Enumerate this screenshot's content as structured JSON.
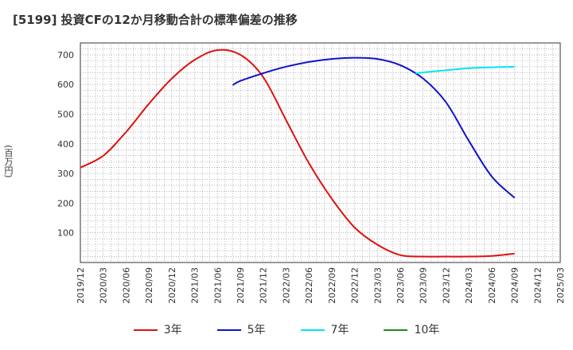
{
  "title": "[5199]  投資CFの12か月移動合計の標準偏差の推移",
  "chart_data": {
    "type": "line",
    "title": "[5199]  投資CFの12か月移動合計の標準偏差の推移",
    "xlabel": "",
    "ylabel": "(百万円)",
    "ylim": [
      0,
      740
    ],
    "yticks": [
      100,
      200,
      300,
      400,
      500,
      600,
      700
    ],
    "xticks": [
      "2019/12",
      "2020/03",
      "2020/06",
      "2020/09",
      "2020/12",
      "2021/03",
      "2021/06",
      "2021/09",
      "2021/12",
      "2022/03",
      "2022/06",
      "2022/09",
      "2022/12",
      "2023/03",
      "2023/06",
      "2023/09",
      "2023/12",
      "2024/03",
      "2024/06",
      "2024/09",
      "2024/12",
      "2025/03"
    ],
    "grid": true,
    "legend_position": "bottom",
    "series": [
      {
        "name": "3年",
        "color": "#dd1111",
        "points": [
          [
            "2019/12",
            320
          ],
          [
            "2020/03",
            360
          ],
          [
            "2020/06",
            440
          ],
          [
            "2020/09",
            535
          ],
          [
            "2020/12",
            620
          ],
          [
            "2021/03",
            683
          ],
          [
            "2021/06",
            716
          ],
          [
            "2021/09",
            700
          ],
          [
            "2021/12",
            625
          ],
          [
            "2022/03",
            480
          ],
          [
            "2022/06",
            335
          ],
          [
            "2022/09",
            215
          ],
          [
            "2022/12",
            118
          ],
          [
            "2023/03",
            60
          ],
          [
            "2023/06",
            25
          ],
          [
            "2023/09",
            20
          ],
          [
            "2023/12",
            20
          ],
          [
            "2024/03",
            20
          ],
          [
            "2024/06",
            22
          ],
          [
            "2024/09",
            30
          ]
        ]
      },
      {
        "name": "5年",
        "color": "#1111cc",
        "points": [
          [
            "2021/08",
            598
          ],
          [
            "2021/09",
            612
          ],
          [
            "2021/12",
            638
          ],
          [
            "2022/03",
            660
          ],
          [
            "2022/06",
            676
          ],
          [
            "2022/09",
            686
          ],
          [
            "2022/12",
            690
          ],
          [
            "2023/03",
            686
          ],
          [
            "2023/06",
            665
          ],
          [
            "2023/09",
            620
          ],
          [
            "2023/12",
            540
          ],
          [
            "2024/03",
            410
          ],
          [
            "2024/06",
            290
          ],
          [
            "2024/09",
            218
          ]
        ]
      },
      {
        "name": "7年",
        "color": "#00e5ee",
        "points": [
          [
            "2023/08",
            638
          ],
          [
            "2023/12",
            648
          ],
          [
            "2024/03",
            655
          ],
          [
            "2024/06",
            658
          ],
          [
            "2024/09",
            660
          ]
        ]
      },
      {
        "name": "10年",
        "color": "#228822",
        "points": []
      }
    ]
  }
}
